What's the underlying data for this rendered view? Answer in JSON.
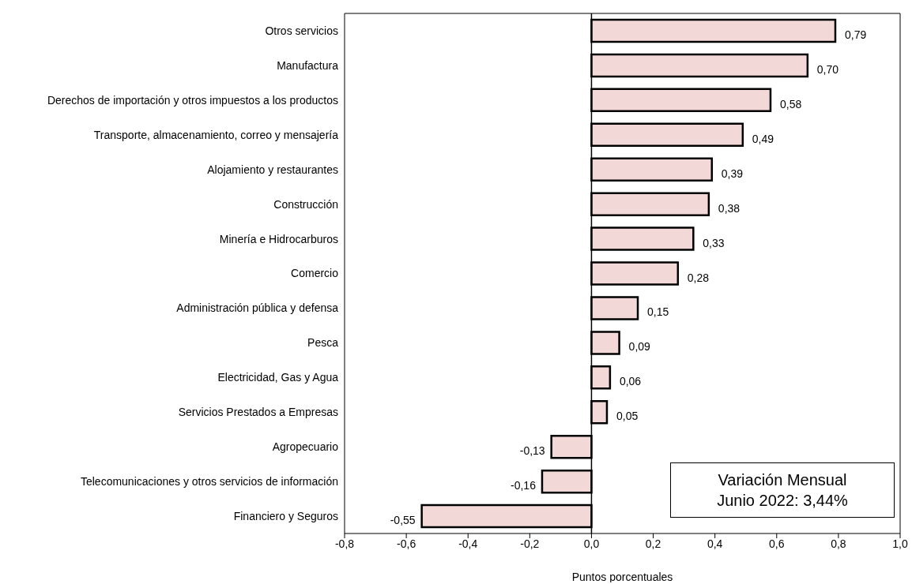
{
  "chart_data": {
    "type": "bar",
    "orientation": "horizontal",
    "xlabel": "Puntos porcentuales",
    "categories": [
      "Otros servicios",
      "Manufactura",
      "Derechos de importación y otros impuestos a los productos",
      "Transporte, almacenamiento, correo y mensajería",
      "Alojamiento y restaurantes",
      "Construcción",
      "Minería e Hidrocarburos",
      "Comercio",
      "Administración pública y defensa",
      "Pesca",
      "Electricidad, Gas y Agua",
      "Servicios Prestados a Empresas",
      "Agropecuario",
      "Telecomunicaciones y otros servicios de información",
      "Financiero y Seguros"
    ],
    "values": [
      0.79,
      0.7,
      0.58,
      0.49,
      0.39,
      0.38,
      0.33,
      0.28,
      0.15,
      0.09,
      0.06,
      0.05,
      -0.13,
      -0.16,
      -0.55
    ],
    "value_labels": [
      "0,79",
      "0,70",
      "0,58",
      "0,49",
      "0,39",
      "0,38",
      "0,33",
      "0,28",
      "0,15",
      "0,09",
      "0,06",
      "0,05",
      "-0,13",
      "-0,16",
      "-0,55"
    ],
    "color": "#f2d9d7",
    "xlim": [
      -0.8,
      1.0
    ],
    "xticks": [
      {
        "value": -0.8,
        "label": "-0,8"
      },
      {
        "value": -0.6,
        "label": "-0,6"
      },
      {
        "value": -0.4,
        "label": "-0,4"
      },
      {
        "value": -0.2,
        "label": "-0,2"
      },
      {
        "value": 0,
        "label": "0,0"
      },
      {
        "value": 0.2,
        "label": "0,2"
      },
      {
        "value": 0.4,
        "label": "0,4"
      },
      {
        "value": 0.6,
        "label": "0,6"
      },
      {
        "value": 0.8,
        "label": "0,8"
      },
      {
        "value": 1.0,
        "label": "1,0"
      }
    ],
    "ref_lines": [
      {
        "axis": "x",
        "value": 0,
        "color": "#000000"
      }
    ],
    "annotations": [
      "Variación Mensual\nJunio 2022: 3,44%"
    ],
    "grid": false,
    "legend": false
  }
}
